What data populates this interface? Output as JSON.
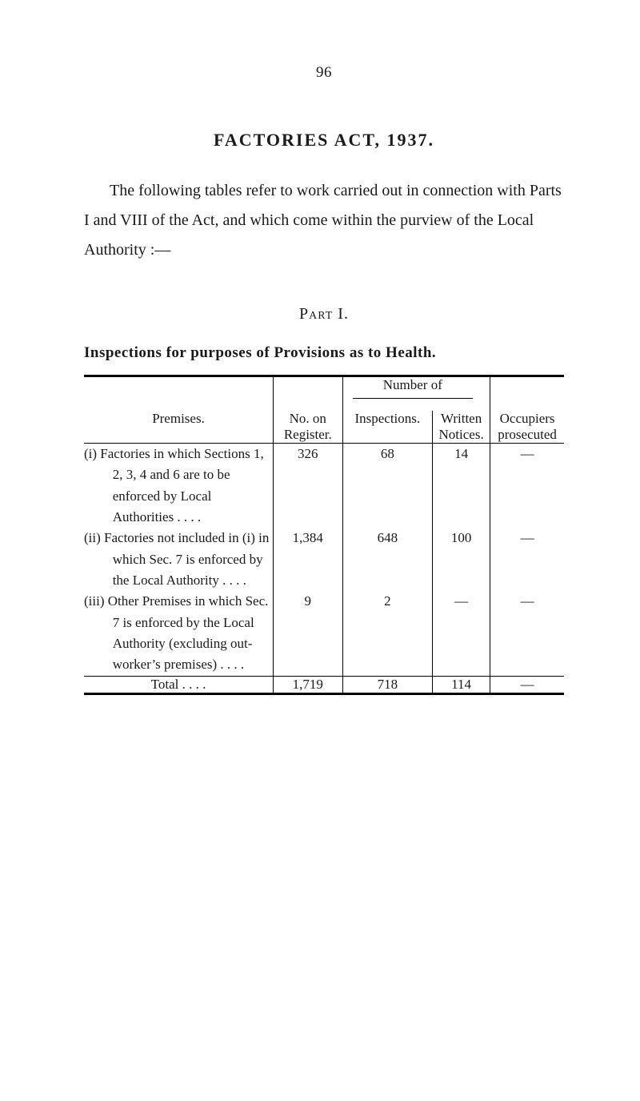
{
  "page_number": "96",
  "title": "FACTORIES  ACT,  1937.",
  "intro": "The following tables refer to work carried out in connection with Parts I and VIII of the Act, and which come within the purview of the Local Authority :—",
  "part_label": "Part I.",
  "subheading": "Inspections for purposes of Provisions as to Health.",
  "table": {
    "header": {
      "premises": "Premises.",
      "no_on_register": "No. on Register.",
      "number_of": "Number of",
      "inspections": "Inspections.",
      "written_notices": "Written Notices.",
      "occupiers_prosecuted": "Occupiers prosecuted"
    },
    "rows": [
      {
        "premises": "(i) Factories in which Sect­ions 1, 2, 3, 4 and 6 are to be enforced by Local Authorities   . .           . .",
        "register": "326",
        "inspections": "68",
        "notices": "14",
        "occupiers": "—"
      },
      {
        "premises": "(ii) Factories not included in (i) in which Sec. 7 is enforced by the Local Authority      . .           . .",
        "register": "1,384",
        "inspections": "648",
        "notices": "100",
        "occupiers": "—"
      },
      {
        "premises": "(iii) Other Premises in which Sec. 7 is enforced by the Local Authority (ex­cluding out-worker’s premises)     . .           . .",
        "register": "9",
        "inspections": "2",
        "notices": "—",
        "occupiers": "—"
      }
    ],
    "total": {
      "label": "Total     . .           . .",
      "register": "1,719",
      "inspections": "718",
      "notices": "114",
      "occupiers": "—"
    }
  }
}
